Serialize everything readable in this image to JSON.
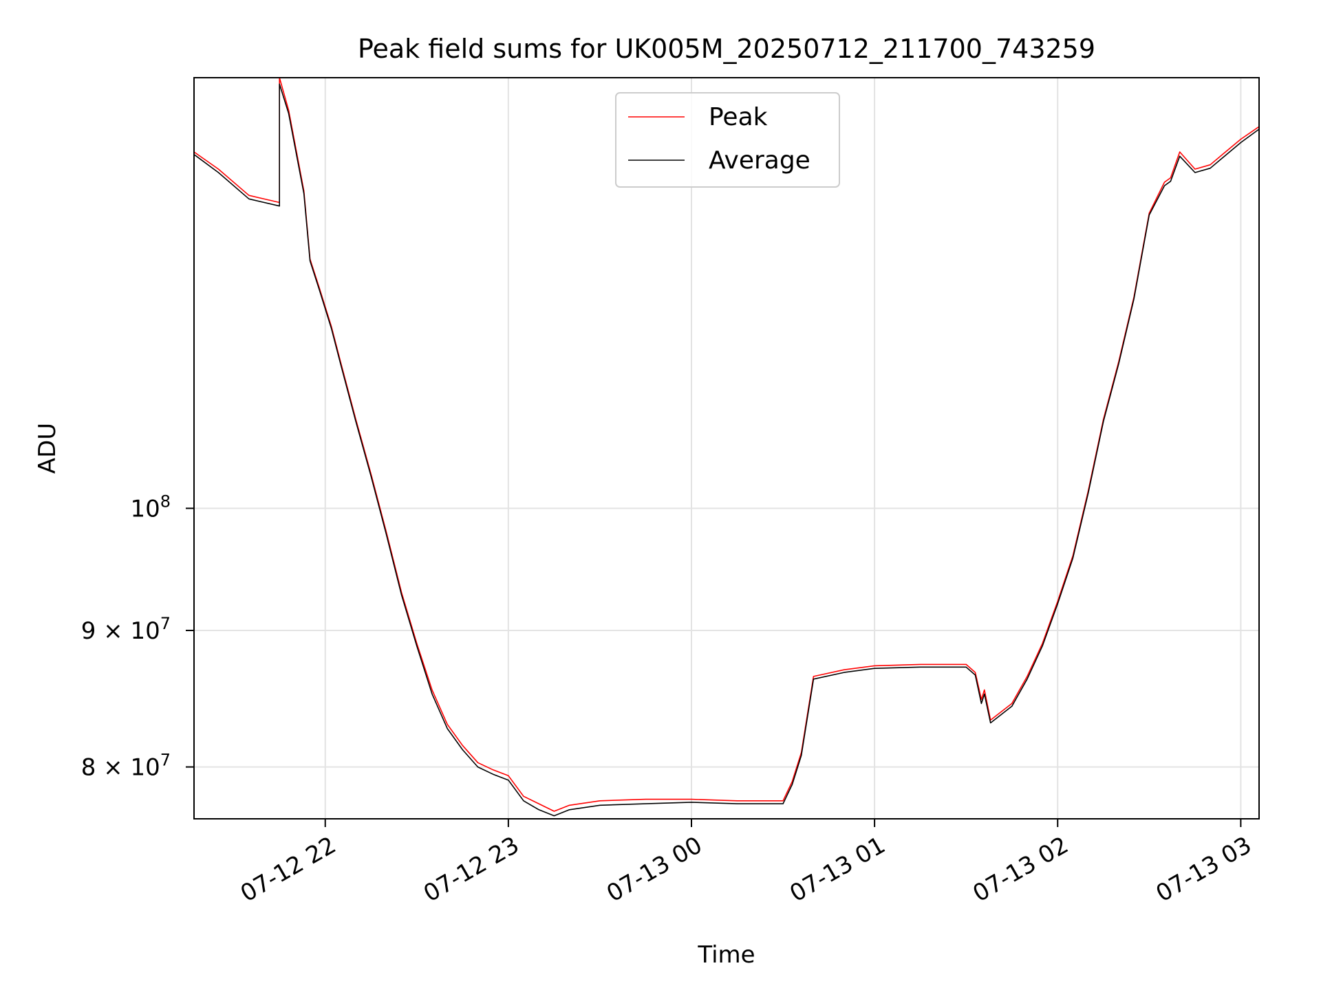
{
  "chart_data": {
    "type": "line",
    "title": "Peak field sums for UK005M_20250712_211700_743259",
    "xlabel": "Time",
    "ylabel": "ADU",
    "y_scale": "log",
    "ylim": [
      76500000,
      145000000
    ],
    "xlim": [
      "2025-07-12 21:17",
      "2025-07-13 03:06"
    ],
    "grid": true,
    "legend_position": "upper center",
    "x_ticks": [
      {
        "value": "2025-07-12 22:00",
        "label": "07-12 22"
      },
      {
        "value": "2025-07-12 23:00",
        "label": "07-12 23"
      },
      {
        "value": "2025-07-13 00:00",
        "label": "07-13 00"
      },
      {
        "value": "2025-07-13 01:00",
        "label": "07-13 01"
      },
      {
        "value": "2025-07-13 02:00",
        "label": "07-13 02"
      },
      {
        "value": "2025-07-13 03:00",
        "label": "07-13 03"
      }
    ],
    "y_ticks": [
      {
        "value": 80000000,
        "label_base": "8 × 10",
        "label_exp": "7"
      },
      {
        "value": 90000000,
        "label_base": "9 × 10",
        "label_exp": "7"
      },
      {
        "value": 100000000,
        "label_base": "10",
        "label_exp": "8"
      }
    ],
    "series": [
      {
        "name": "Peak",
        "color": "#ff0000",
        "x": [
          "2025-07-12 21:17",
          "2025-07-12 21:25",
          "2025-07-12 21:35",
          "2025-07-12 21:45",
          "2025-07-12 21:45",
          "2025-07-12 21:48",
          "2025-07-12 21:53",
          "2025-07-12 21:55",
          "2025-07-12 21:58",
          "2025-07-12 22:02",
          "2025-07-12 22:05",
          "2025-07-12 22:10",
          "2025-07-12 22:15",
          "2025-07-12 22:20",
          "2025-07-12 22:25",
          "2025-07-12 22:30",
          "2025-07-12 22:35",
          "2025-07-12 22:40",
          "2025-07-12 22:45",
          "2025-07-12 22:50",
          "2025-07-12 22:55",
          "2025-07-12 23:00",
          "2025-07-12 23:05",
          "2025-07-12 23:10",
          "2025-07-12 23:15",
          "2025-07-12 23:20",
          "2025-07-12 23:30",
          "2025-07-12 23:45",
          "2025-07-13 00:00",
          "2025-07-13 00:15",
          "2025-07-13 00:30",
          "2025-07-13 00:33",
          "2025-07-13 00:36",
          "2025-07-13 00:40",
          "2025-07-13 00:50",
          "2025-07-13 01:00",
          "2025-07-13 01:15",
          "2025-07-13 01:30",
          "2025-07-13 01:33",
          "2025-07-13 01:35",
          "2025-07-13 01:36",
          "2025-07-13 01:38",
          "2025-07-13 01:45",
          "2025-07-13 01:50",
          "2025-07-13 01:55",
          "2025-07-13 02:00",
          "2025-07-13 02:05",
          "2025-07-13 02:10",
          "2025-07-13 02:15",
          "2025-07-13 02:20",
          "2025-07-13 02:25",
          "2025-07-13 02:30",
          "2025-07-13 02:35",
          "2025-07-13 02:37",
          "2025-07-13 02:40",
          "2025-07-13 02:45",
          "2025-07-13 02:50",
          "2025-07-13 02:55",
          "2025-07-13 03:00",
          "2025-07-13 03:06"
        ],
        "y": [
          136000000,
          134000000,
          131000000,
          130200000,
          145000000,
          141000000,
          131500000,
          124000000,
          121000000,
          117000000,
          113500000,
          108000000,
          103000000,
          98000000,
          93000000,
          89000000,
          85500000,
          83000000,
          81500000,
          80300000,
          79800000,
          79400000,
          78000000,
          77500000,
          77000000,
          77400000,
          77700000,
          77800000,
          77800000,
          77700000,
          77700000,
          79000000,
          81000000,
          86500000,
          87000000,
          87300000,
          87400000,
          87400000,
          86800000,
          84800000,
          85500000,
          83300000,
          84500000,
          86500000,
          89000000,
          92300000,
          96000000,
          101500000,
          108000000,
          113500000,
          120000000,
          129000000,
          132500000,
          133000000,
          136000000,
          134000000,
          134500000,
          136000000,
          137500000,
          139000000
        ]
      },
      {
        "name": "Average",
        "color": "#000000",
        "x": [
          "2025-07-12 21:17",
          "2025-07-12 21:25",
          "2025-07-12 21:35",
          "2025-07-12 21:45",
          "2025-07-12 21:45",
          "2025-07-12 21:48",
          "2025-07-12 21:53",
          "2025-07-12 21:55",
          "2025-07-12 21:58",
          "2025-07-12 22:02",
          "2025-07-12 22:05",
          "2025-07-12 22:10",
          "2025-07-12 22:15",
          "2025-07-12 22:20",
          "2025-07-12 22:25",
          "2025-07-12 22:30",
          "2025-07-12 22:35",
          "2025-07-12 22:40",
          "2025-07-12 22:45",
          "2025-07-12 22:50",
          "2025-07-12 22:55",
          "2025-07-12 23:00",
          "2025-07-12 23:05",
          "2025-07-12 23:10",
          "2025-07-12 23:15",
          "2025-07-12 23:20",
          "2025-07-12 23:30",
          "2025-07-12 23:45",
          "2025-07-13 00:00",
          "2025-07-13 00:15",
          "2025-07-13 00:30",
          "2025-07-13 00:33",
          "2025-07-13 00:36",
          "2025-07-13 00:40",
          "2025-07-13 00:50",
          "2025-07-13 01:00",
          "2025-07-13 01:15",
          "2025-07-13 01:30",
          "2025-07-13 01:33",
          "2025-07-13 01:35",
          "2025-07-13 01:36",
          "2025-07-13 01:38",
          "2025-07-13 01:45",
          "2025-07-13 01:50",
          "2025-07-13 01:55",
          "2025-07-13 02:00",
          "2025-07-13 02:05",
          "2025-07-13 02:10",
          "2025-07-13 02:15",
          "2025-07-13 02:20",
          "2025-07-13 02:25",
          "2025-07-13 02:30",
          "2025-07-13 02:35",
          "2025-07-13 02:37",
          "2025-07-13 02:40",
          "2025-07-13 02:45",
          "2025-07-13 02:50",
          "2025-07-13 02:55",
          "2025-07-13 03:00",
          "2025-07-13 03:06"
        ],
        "y": [
          135700000,
          133600000,
          130600000,
          129800000,
          144200000,
          140600000,
          131200000,
          123800000,
          120800000,
          116800000,
          113300000,
          107800000,
          102800000,
          97800000,
          92800000,
          88800000,
          85200000,
          82700000,
          81200000,
          80000000,
          79500000,
          79100000,
          77700000,
          77100000,
          76700000,
          77100000,
          77400000,
          77500000,
          77600000,
          77500000,
          77500000,
          78800000,
          80800000,
          86300000,
          86800000,
          87100000,
          87200000,
          87200000,
          86600000,
          84500000,
          85200000,
          83100000,
          84300000,
          86300000,
          88800000,
          92100000,
          95800000,
          101300000,
          107800000,
          113300000,
          119800000,
          128800000,
          132100000,
          132600000,
          135500000,
          133600000,
          134100000,
          135600000,
          137100000,
          138700000
        ]
      }
    ]
  }
}
